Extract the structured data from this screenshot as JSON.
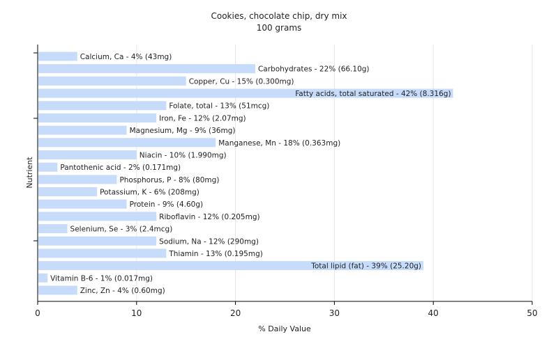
{
  "chart_data": {
    "type": "bar",
    "orientation": "horizontal",
    "title": "Cookies, chocolate chip, dry mix",
    "subtitle": "100 grams",
    "xlabel": "% Daily Value",
    "ylabel": "Nutrient",
    "xlim": [
      0,
      50
    ],
    "xticks": [
      0,
      10,
      20,
      30,
      40,
      50
    ],
    "grid": true,
    "bar_color": "#c6dcfa",
    "categories": [
      "Calcium, Ca",
      "Carbohydrates",
      "Copper, Cu",
      "Fatty acids, total saturated",
      "Folate, total",
      "Iron, Fe",
      "Magnesium, Mg",
      "Manganese, Mn",
      "Niacin",
      "Pantothenic acid",
      "Phosphorus, P",
      "Potassium, K",
      "Protein",
      "Riboflavin",
      "Selenium, Se",
      "Sodium, Na",
      "Thiamin",
      "Total lipid (fat)",
      "Vitamin B-6",
      "Zinc, Zn"
    ],
    "values": [
      4,
      22,
      15,
      42,
      13,
      12,
      9,
      18,
      10,
      2,
      8,
      6,
      9,
      12,
      3,
      12,
      13,
      39,
      1,
      4
    ],
    "labels": [
      "Calcium, Ca - 4% (43mg)",
      "Carbohydrates - 22% (66.10g)",
      "Copper, Cu - 15% (0.300mg)",
      "Fatty acids, total saturated - 42% (8.316g)",
      "Folate, total - 13% (51mcg)",
      "Iron, Fe - 12% (2.07mg)",
      "Magnesium, Mg - 9% (36mg)",
      "Manganese, Mn - 18% (0.363mg)",
      "Niacin - 10% (1.990mg)",
      "Pantothenic acid - 2% (0.171mg)",
      "Phosphorus, P - 8% (80mg)",
      "Potassium, K - 6% (208mg)",
      "Protein - 9% (4.60g)",
      "Riboflavin - 12% (0.205mg)",
      "Selenium, Se - 3% (2.4mcg)",
      "Sodium, Na - 12% (290mg)",
      "Thiamin - 13% (0.195mg)",
      "Total lipid (fat) - 39% (25.20g)",
      "Vitamin B-6 - 1% (0.017mg)",
      "Zinc, Zn - 4% (0.60mg)"
    ]
  }
}
